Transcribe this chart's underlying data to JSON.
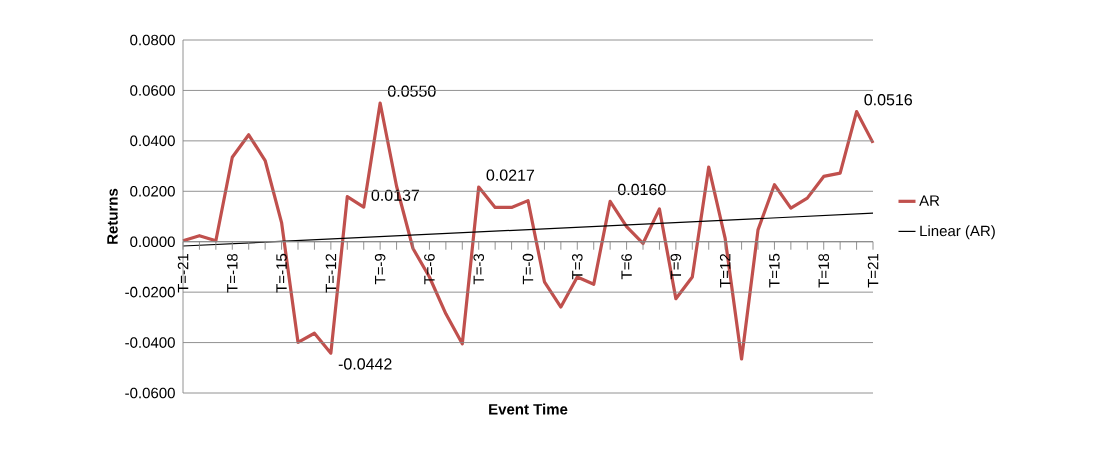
{
  "chart_data": {
    "type": "line",
    "xlabel": "Event Time",
    "ylabel": "Returns",
    "categories": [
      "T=-21",
      null,
      null,
      "T=-18",
      null,
      null,
      "T=-15",
      null,
      null,
      "T=-12",
      null,
      null,
      "T=-9",
      null,
      null,
      "T=-6",
      null,
      null,
      "T=-3",
      null,
      null,
      "T=-0",
      null,
      null,
      "T=3",
      null,
      null,
      "T=6",
      null,
      null,
      "T=9",
      null,
      null,
      "T=12",
      null,
      null,
      "T=15",
      null,
      null,
      "T=18",
      null,
      null,
      "T=21"
    ],
    "series": [
      {
        "name": "AR",
        "color": "#c0504d",
        "values": [
          0.0004,
          0.0024,
          0.0004,
          0.0335,
          0.0424,
          0.0322,
          0.0076,
          -0.0399,
          -0.0363,
          -0.0442,
          0.0179,
          0.0137,
          0.055,
          0.022,
          -0.0027,
          -0.014,
          -0.0286,
          -0.0405,
          0.0217,
          0.0136,
          0.0136,
          0.0163,
          -0.0159,
          -0.0259,
          -0.014,
          -0.0169,
          0.016,
          0.006,
          -0.0007,
          0.013,
          -0.0226,
          -0.014,
          0.0296,
          0.0013,
          -0.0465,
          0.0047,
          0.0226,
          0.0133,
          0.0173,
          0.0259,
          0.0272,
          0.0516,
          0.0392
        ],
        "value_labels": [
          null,
          null,
          null,
          null,
          null,
          null,
          null,
          null,
          null,
          "-0.0442",
          null,
          "0.0137",
          "0.0550",
          null,
          null,
          null,
          null,
          null,
          "0.0217",
          null,
          null,
          null,
          null,
          null,
          null,
          null,
          "0.0160",
          null,
          null,
          null,
          null,
          null,
          null,
          null,
          null,
          null,
          null,
          null,
          null,
          null,
          null,
          "0.0516",
          null
        ]
      },
      {
        "name": "Linear (AR)",
        "color": "#000000",
        "type": "line",
        "x": [
          "T=-21",
          "T=21"
        ],
        "values": [
          -0.0017,
          0.0113
        ]
      }
    ],
    "ylim": [
      -0.06,
      0.08
    ],
    "yticks": [
      {
        "value": -0.06,
        "label": "-0.0600"
      },
      {
        "value": -0.04,
        "label": "-0.0400"
      },
      {
        "value": -0.02,
        "label": "-0.0200"
      },
      {
        "value": 0,
        "label": "0.0000"
      },
      {
        "value": 0.02,
        "label": "0.0200"
      },
      {
        "value": 0.04,
        "label": "0.0400"
      },
      {
        "value": 0.06,
        "label": "0.0600"
      },
      {
        "value": 0.08,
        "label": "0.0800"
      }
    ],
    "grid": "y",
    "legend": "right"
  }
}
